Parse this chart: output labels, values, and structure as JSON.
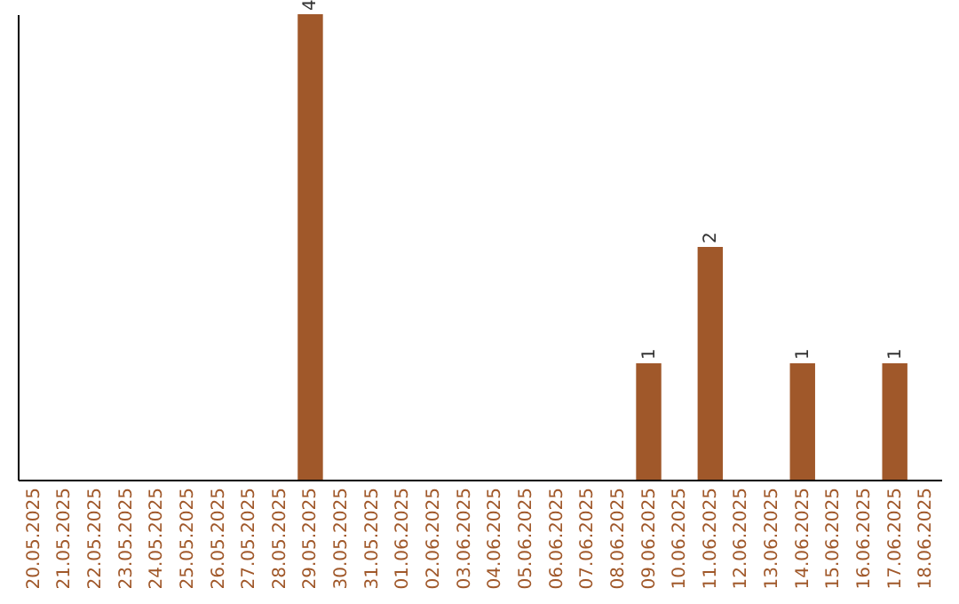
{
  "chart_data": {
    "type": "bar",
    "categories": [
      "20.05.2025",
      "21.05.2025",
      "22.05.2025",
      "23.05.2025",
      "24.05.2025",
      "25.05.2025",
      "26.05.2025",
      "27.05.2025",
      "28.05.2025",
      "29.05.2025",
      "30.05.2025",
      "31.05.2025",
      "01.06.2025",
      "02.06.2025",
      "03.06.2025",
      "04.06.2025",
      "05.06.2025",
      "06.06.2025",
      "07.06.2025",
      "08.06.2025",
      "09.06.2025",
      "10.06.2025",
      "11.06.2025",
      "12.06.2025",
      "13.06.2025",
      "14.06.2025",
      "15.06.2025",
      "16.06.2025",
      "17.06.2025",
      "18.06.2025"
    ],
    "values": [
      0,
      0,
      0,
      0,
      0,
      0,
      0,
      0,
      0,
      4,
      0,
      0,
      0,
      0,
      0,
      0,
      0,
      0,
      0,
      0,
      1,
      0,
      2,
      0,
      0,
      1,
      0,
      0,
      1,
      0
    ],
    "value_labels": [
      null,
      null,
      null,
      null,
      null,
      null,
      null,
      null,
      null,
      "4",
      null,
      null,
      null,
      null,
      null,
      null,
      null,
      null,
      null,
      null,
      "1",
      null,
      "2",
      null,
      null,
      "1",
      null,
      null,
      "1",
      null
    ],
    "color": "#a0582a",
    "grid": false
  }
}
